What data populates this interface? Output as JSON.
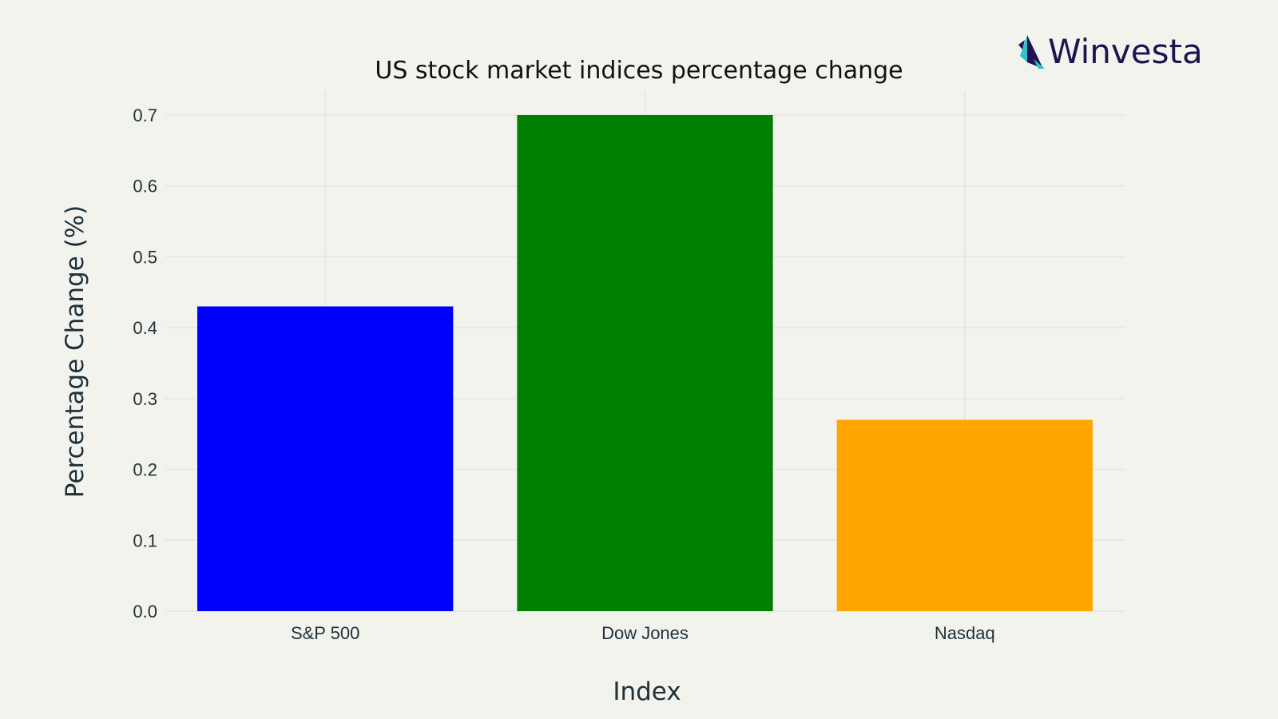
{
  "brand": {
    "name": "Winvesta",
    "logo_icon": "winvesta-bird-icon",
    "text_color": "#1f1450",
    "icon_colors": [
      "#1f1450",
      "#2ec4c9"
    ]
  },
  "background_color": "#f3f3ee",
  "chart_data": {
    "type": "bar",
    "title": "US stock market indices percentage change",
    "xlabel": "Index",
    "ylabel": "Percentage Change (%)",
    "categories": [
      "S&P 500",
      "Dow Jones",
      "Nasdaq"
    ],
    "values": [
      0.43,
      0.7,
      0.27
    ],
    "colors": [
      "#0000ff",
      "#008000",
      "#ffa500"
    ],
    "ylim": [
      0,
      0.7
    ],
    "yticks": [
      0.0,
      0.1,
      0.2,
      0.3,
      0.4,
      0.5,
      0.6,
      0.7
    ],
    "ytick_labels": [
      "0.0",
      "0.1",
      "0.2",
      "0.3",
      "0.4",
      "0.5",
      "0.6",
      "0.7"
    ],
    "grid": true,
    "legend": "none"
  }
}
